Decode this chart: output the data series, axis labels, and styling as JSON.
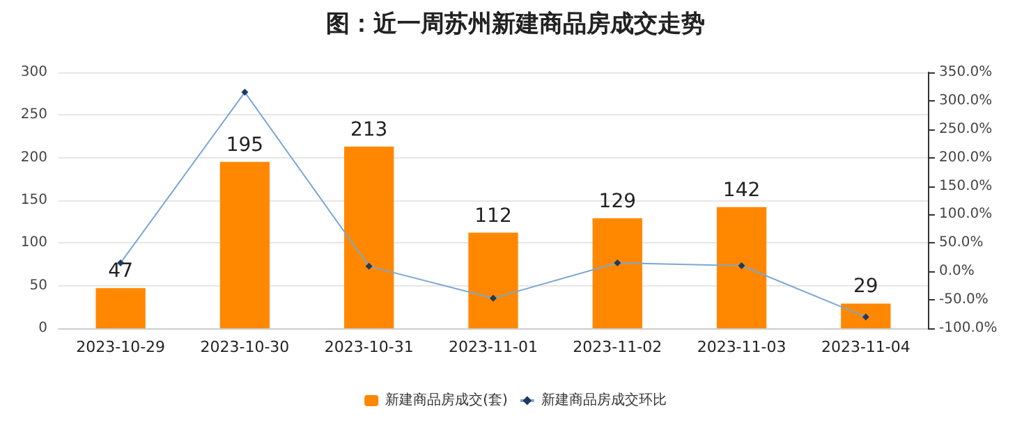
{
  "chart_data": {
    "type": "bar",
    "title": "图：近一周苏州新建商品房成交走势",
    "categories": [
      "2023-10-29",
      "2023-10-30",
      "2023-10-31",
      "2023-11-01",
      "2023-11-02",
      "2023-11-03",
      "2023-11-04"
    ],
    "series": [
      {
        "name": "新建商品房成交(套)",
        "color": "#ff8800",
        "values": [
          47,
          195,
          213,
          112,
          129,
          142,
          29
        ],
        "value_labels": [
          "47",
          "195",
          "213",
          "112",
          "129",
          "142",
          "29"
        ]
      },
      {
        "name": "新建商品房成交环比",
        "type": "line",
        "axis": "y2",
        "color": "#7ba7d4",
        "marker": "diamond",
        "values": [
          15,
          315,
          9,
          -47,
          15,
          10,
          -80
        ]
      }
    ],
    "ylim": [
      0,
      300
    ],
    "yticks": [
      0,
      50,
      100,
      150,
      200,
      250,
      300
    ],
    "y2lim": [
      -100,
      350
    ],
    "y2ticks": [
      {
        "value": -100,
        "label": "-100.0%"
      },
      {
        "value": -50,
        "label": "-50.0%"
      },
      {
        "value": 0,
        "label": "0.0%"
      },
      {
        "value": 50,
        "label": "50.0%"
      },
      {
        "value": 100,
        "label": "100.0%"
      },
      {
        "value": 150,
        "label": "150.0%"
      },
      {
        "value": 200,
        "label": "200.0%"
      },
      {
        "value": 250,
        "label": "250.0%"
      },
      {
        "value": 300,
        "label": "300.0%"
      },
      {
        "value": 350,
        "label": "350.0%"
      }
    ],
    "grid": "y",
    "legend": "bottom"
  }
}
